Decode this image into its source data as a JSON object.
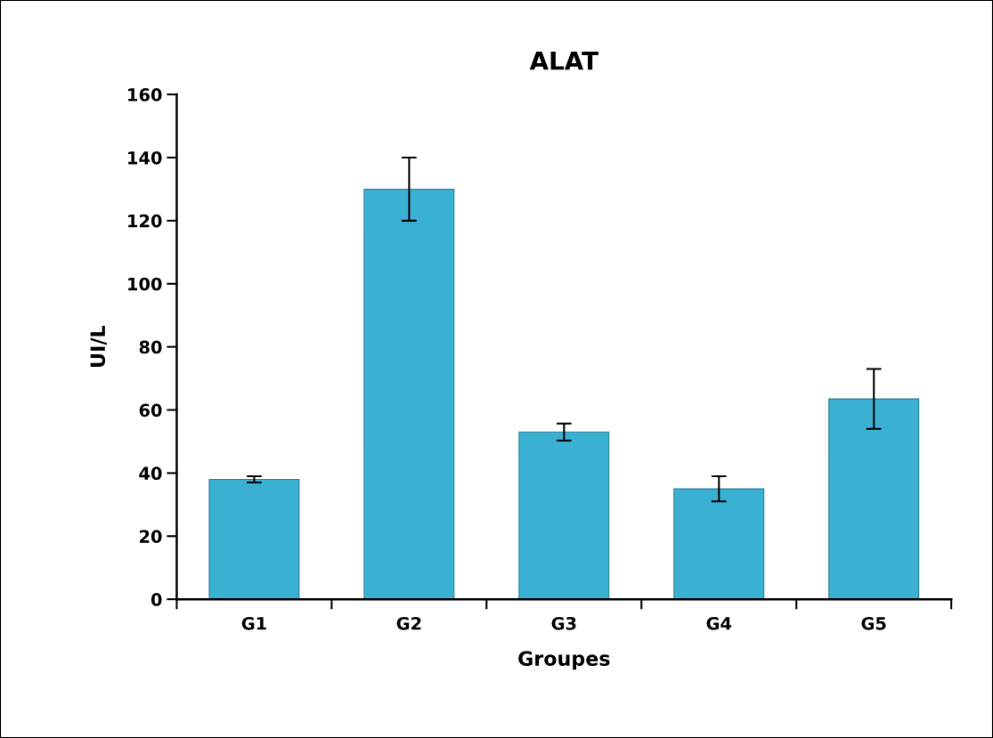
{
  "chart_data": {
    "type": "bar",
    "title": "ALAT",
    "xlabel": "Groupes",
    "ylabel": "UI/L",
    "categories": [
      "G1",
      "G2",
      "G3",
      "G4",
      "G5"
    ],
    "values": [
      38,
      130,
      53,
      35,
      63.5
    ],
    "errors": [
      1,
      10,
      2.7,
      4,
      9.5
    ],
    "color": "#3ab0d2",
    "ylim": [
      0,
      160
    ],
    "yticks": [
      0,
      20,
      40,
      60,
      80,
      100,
      120,
      140,
      160
    ],
    "grid": false,
    "legend": false
  }
}
